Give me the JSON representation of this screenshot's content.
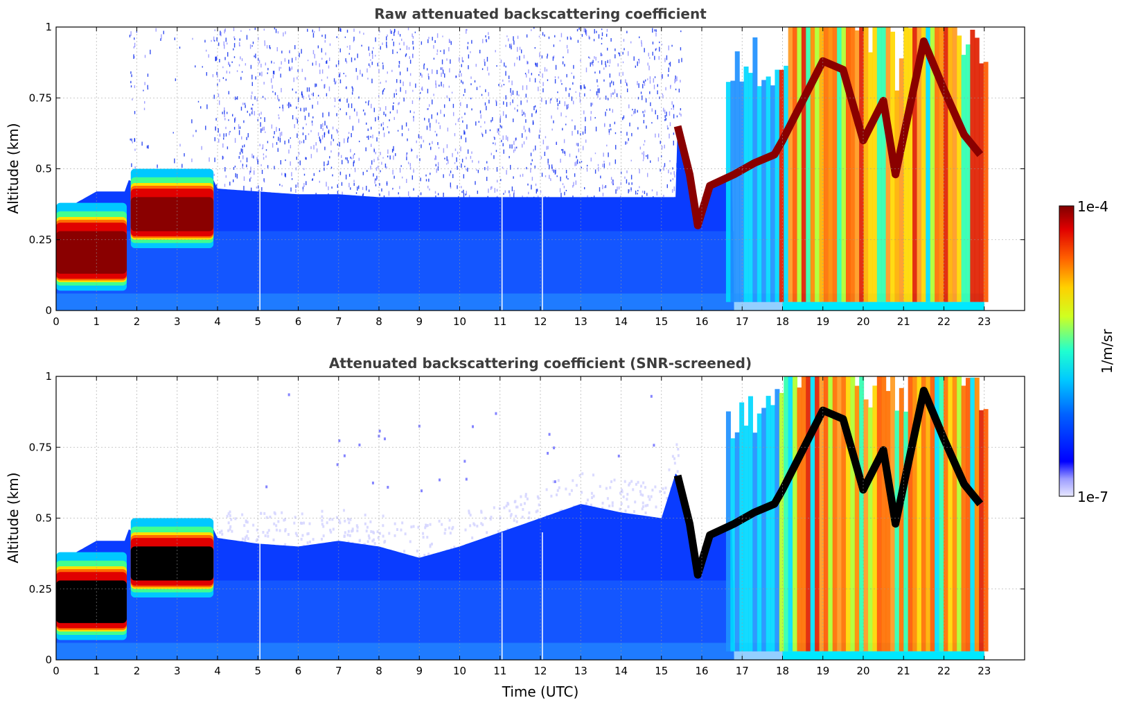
{
  "figure": {
    "colorbar": {
      "max_label": "1e-4",
      "min_label": "1e-7",
      "unit": "1/m/sr",
      "colormap": "jet"
    }
  },
  "chart_data": [
    {
      "type": "heatmap",
      "title": "Raw attenuated backscattering coefficient",
      "xlabel": "",
      "ylabel": "Altitude (km)",
      "xlim": [
        0,
        24
      ],
      "ylim": [
        0,
        1
      ],
      "xticks": [
        "0",
        "1",
        "2",
        "3",
        "4",
        "5",
        "6",
        "7",
        "8",
        "9",
        "10",
        "11",
        "12",
        "13",
        "14",
        "15",
        "16",
        "17",
        "18",
        "19",
        "20",
        "21",
        "22",
        "23"
      ],
      "yticks": [
        "0",
        "0.25",
        "0.5",
        "0.75",
        "1"
      ],
      "grid": true,
      "screened": false,
      "boundary_layer_top_km": [
        [
          0,
          0.31
        ],
        [
          0.5,
          0.38
        ],
        [
          1.0,
          0.42
        ],
        [
          1.7,
          0.42
        ],
        [
          1.8,
          0.46
        ],
        [
          2.0,
          0.45
        ],
        [
          2.5,
          0.42
        ],
        [
          3.0,
          0.38
        ],
        [
          3.5,
          0.4
        ],
        [
          3.9,
          0.46
        ],
        [
          4.0,
          0.43
        ],
        [
          5,
          0.42
        ],
        [
          6,
          0.41
        ],
        [
          7,
          0.41
        ],
        [
          8,
          0.4
        ],
        [
          9,
          0.4
        ],
        [
          10,
          0.4
        ],
        [
          11,
          0.4
        ],
        [
          12,
          0.4
        ],
        [
          13,
          0.4
        ],
        [
          14,
          0.4
        ],
        [
          15,
          0.4
        ],
        [
          15.4,
          0.4
        ]
      ],
      "aerosol_layer": [
        {
          "t0": 0,
          "t1": 1.75,
          "bottom_km": 0.13,
          "top_km": 0.28
        },
        {
          "t0": 1.85,
          "t1": 3.9,
          "bottom_km": 0.28,
          "top_km": 0.4
        }
      ],
      "cloud_base_km": [
        [
          15.4,
          0.65
        ],
        [
          15.7,
          0.48
        ],
        [
          15.9,
          0.3
        ],
        [
          16.2,
          0.44
        ],
        [
          16.8,
          0.48
        ],
        [
          17.3,
          0.52
        ],
        [
          17.8,
          0.55
        ],
        [
          18.0,
          0.6
        ],
        [
          19.0,
          0.88
        ],
        [
          19.5,
          0.85
        ],
        [
          20.0,
          0.6
        ],
        [
          20.5,
          0.74
        ],
        [
          20.8,
          0.48
        ],
        [
          21.5,
          0.95
        ],
        [
          22.0,
          0.78
        ],
        [
          22.5,
          0.62
        ],
        [
          22.9,
          0.55
        ]
      ],
      "data_end_hour": 23
    },
    {
      "type": "heatmap",
      "title": "Attenuated backscattering coefficient (SNR-screened)",
      "xlabel": "Time (UTC)",
      "ylabel": "Altitude (km)",
      "xlim": [
        0,
        24
      ],
      "ylim": [
        0,
        1
      ],
      "xticks": [
        "0",
        "1",
        "2",
        "3",
        "4",
        "5",
        "6",
        "7",
        "8",
        "9",
        "10",
        "11",
        "12",
        "13",
        "14",
        "15",
        "16",
        "17",
        "18",
        "19",
        "20",
        "21",
        "22",
        "23"
      ],
      "yticks": [
        "0",
        "0.25",
        "0.5",
        "0.75",
        "1"
      ],
      "grid": true,
      "screened": true,
      "boundary_layer_top_km": [
        [
          0,
          0.31
        ],
        [
          0.5,
          0.38
        ],
        [
          1.0,
          0.42
        ],
        [
          1.7,
          0.42
        ],
        [
          1.8,
          0.46
        ],
        [
          2.0,
          0.45
        ],
        [
          2.5,
          0.42
        ],
        [
          3.0,
          0.38
        ],
        [
          3.5,
          0.4
        ],
        [
          3.9,
          0.46
        ],
        [
          4.0,
          0.43
        ],
        [
          5,
          0.41
        ],
        [
          6,
          0.4
        ],
        [
          7,
          0.42
        ],
        [
          8,
          0.4
        ],
        [
          9,
          0.36
        ],
        [
          10,
          0.4
        ],
        [
          11,
          0.45
        ],
        [
          12,
          0.5
        ],
        [
          13,
          0.55
        ],
        [
          14,
          0.52
        ],
        [
          15,
          0.5
        ],
        [
          15.4,
          0.68
        ]
      ],
      "aerosol_layer": [
        {
          "t0": 0,
          "t1": 1.75,
          "bottom_km": 0.13,
          "top_km": 0.28
        },
        {
          "t0": 1.85,
          "t1": 3.9,
          "bottom_km": 0.28,
          "top_km": 0.4
        }
      ],
      "cloud_base_km": [
        [
          15.4,
          0.65
        ],
        [
          15.7,
          0.48
        ],
        [
          15.9,
          0.3
        ],
        [
          16.2,
          0.44
        ],
        [
          16.8,
          0.48
        ],
        [
          17.3,
          0.52
        ],
        [
          17.8,
          0.55
        ],
        [
          18.0,
          0.6
        ],
        [
          19.0,
          0.88
        ],
        [
          19.5,
          0.85
        ],
        [
          20.0,
          0.6
        ],
        [
          20.5,
          0.74
        ],
        [
          20.8,
          0.48
        ],
        [
          21.5,
          0.95
        ],
        [
          22.0,
          0.78
        ],
        [
          22.5,
          0.62
        ],
        [
          22.9,
          0.55
        ]
      ],
      "data_end_hour": 23
    }
  ]
}
